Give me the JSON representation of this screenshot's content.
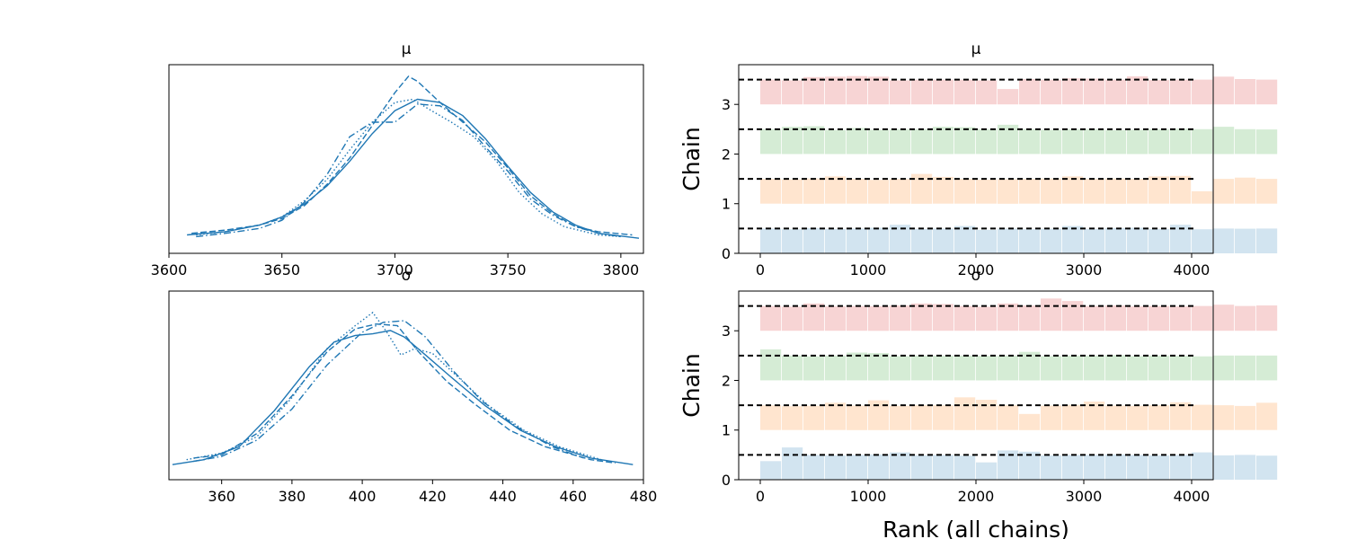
{
  "chart_data": [
    {
      "type": "line",
      "title": "μ",
      "xlim": [
        3600,
        3810
      ],
      "xticks": [
        3600,
        3650,
        3700,
        3750,
        3800
      ],
      "color": "#1f77b4",
      "series": [
        {
          "linestyle": "solid",
          "x": [
            3608,
            3625,
            3640,
            3650,
            3660,
            3670,
            3680,
            3690,
            3700,
            3710,
            3720,
            3730,
            3740,
            3750,
            3760,
            3770,
            3780,
            3790,
            3808
          ],
          "y": [
            0.03,
            0.05,
            0.09,
            0.14,
            0.22,
            0.33,
            0.48,
            0.65,
            0.79,
            0.86,
            0.84,
            0.76,
            0.62,
            0.45,
            0.29,
            0.17,
            0.09,
            0.04,
            0.01
          ]
        },
        {
          "linestyle": "dashed",
          "x": [
            3610,
            3625,
            3640,
            3650,
            3660,
            3670,
            3680,
            3690,
            3700,
            3706,
            3710,
            3720,
            3730,
            3740,
            3750,
            3760,
            3770,
            3780,
            3790,
            3805
          ],
          "y": [
            0.04,
            0.06,
            0.09,
            0.13,
            0.21,
            0.34,
            0.5,
            0.7,
            0.9,
            1.0,
            0.97,
            0.84,
            0.72,
            0.6,
            0.44,
            0.27,
            0.16,
            0.08,
            0.05,
            0.03
          ]
        },
        {
          "linestyle": "dotted",
          "x": [
            3612,
            3625,
            3640,
            3650,
            3660,
            3670,
            3680,
            3690,
            3700,
            3708,
            3715,
            3725,
            3735,
            3745,
            3755,
            3765,
            3775,
            3790,
            3800
          ],
          "y": [
            0.03,
            0.05,
            0.09,
            0.14,
            0.24,
            0.37,
            0.55,
            0.72,
            0.84,
            0.86,
            0.8,
            0.72,
            0.63,
            0.48,
            0.29,
            0.16,
            0.08,
            0.03,
            0.02
          ]
        },
        {
          "linestyle": "dashdot",
          "x": [
            3612,
            3625,
            3640,
            3650,
            3660,
            3670,
            3680,
            3690,
            3700,
            3710,
            3720,
            3730,
            3740,
            3750,
            3760,
            3770,
            3780,
            3790,
            3800
          ],
          "y": [
            0.02,
            0.04,
            0.07,
            0.12,
            0.23,
            0.4,
            0.63,
            0.72,
            0.72,
            0.83,
            0.82,
            0.73,
            0.57,
            0.42,
            0.25,
            0.15,
            0.08,
            0.04,
            0.02
          ]
        }
      ]
    },
    {
      "type": "bar",
      "title": "μ",
      "ylabel": "Chain",
      "xlim": [
        -200,
        4200
      ],
      "ylim": [
        0,
        3.8
      ],
      "xticks": [
        0,
        1000,
        2000,
        3000,
        4000
      ],
      "yticks": [
        0,
        1,
        2,
        3
      ],
      "bin_width": 200,
      "bar_scale": 0.5,
      "chains": [
        {
          "name": "0",
          "color": "#1f77b4",
          "heights": [
            1.0,
            0.97,
            1.02,
            0.98,
            1.0,
            1.03,
            1.15,
            0.98,
            1.0,
            1.1,
            0.95,
            1.0,
            0.97,
            0.99,
            1.1,
            0.98,
            1.02,
            1.03,
            0.98,
            1.15,
            0.97,
            1.0,
            0.99,
            1.0
          ]
        },
        {
          "name": "1",
          "color": "#ff7f0e",
          "heights": [
            1.0,
            0.98,
            1.02,
            1.1,
            1.0,
            0.96,
            1.0,
            1.2,
            1.08,
            1.0,
            0.97,
            0.99,
            1.0,
            1.02,
            1.1,
            1.0,
            1.02,
            1.0,
            1.1,
            1.12,
            0.5,
            1.0,
            1.05,
            1.0
          ]
        },
        {
          "name": "2",
          "color": "#2ca02c",
          "heights": [
            1.0,
            1.1,
            1.12,
            0.97,
            1.05,
            0.98,
            1.0,
            1.0,
            1.1,
            1.08,
            1.0,
            1.18,
            1.0,
            0.98,
            1.0,
            1.0,
            0.96,
            0.98,
            1.0,
            1.02,
            1.0,
            1.1,
            1.0,
            0.99
          ]
        },
        {
          "name": "3",
          "color": "#d62728",
          "heights": [
            1.0,
            0.97,
            1.1,
            1.12,
            1.14,
            1.12,
            0.97,
            1.0,
            1.0,
            1.0,
            0.97,
            0.62,
            1.02,
            1.0,
            1.05,
            1.04,
            1.0,
            1.13,
            0.98,
            1.0,
            1.0,
            1.12,
            1.02,
            1.0
          ]
        }
      ]
    },
    {
      "type": "line",
      "title": "σ",
      "xlim": [
        345,
        480
      ],
      "xticks": [
        360,
        380,
        400,
        420,
        440,
        460,
        480
      ],
      "color": "#1f77b4",
      "series": [
        {
          "linestyle": "solid",
          "x": [
            346,
            355,
            365,
            375,
            385,
            392,
            398,
            403,
            408,
            412,
            418,
            425,
            435,
            445,
            455,
            465,
            477
          ],
          "y": [
            0.01,
            0.04,
            0.12,
            0.34,
            0.61,
            0.76,
            0.8,
            0.81,
            0.83,
            0.79,
            0.68,
            0.55,
            0.37,
            0.22,
            0.12,
            0.05,
            0.01
          ]
        },
        {
          "linestyle": "dashed",
          "x": [
            352,
            360,
            370,
            380,
            390,
            398,
            404,
            410,
            416,
            424,
            432,
            442,
            452,
            465,
            472
          ],
          "y": [
            0.05,
            0.07,
            0.2,
            0.43,
            0.7,
            0.84,
            0.87,
            0.86,
            0.7,
            0.52,
            0.38,
            0.22,
            0.12,
            0.04,
            0.02
          ]
        },
        {
          "linestyle": "dotted",
          "x": [
            350,
            360,
            370,
            380,
            390,
            398,
            403,
            407,
            411,
            415,
            420,
            428,
            436,
            446,
            456,
            468
          ],
          "y": [
            0.04,
            0.08,
            0.18,
            0.42,
            0.72,
            0.86,
            0.94,
            0.82,
            0.68,
            0.72,
            0.69,
            0.53,
            0.37,
            0.22,
            0.12,
            0.04
          ]
        },
        {
          "linestyle": "dashdot",
          "x": [
            352,
            360,
            370,
            380,
            390,
            400,
            406,
            412,
            418,
            426,
            434,
            444,
            454,
            463
          ],
          "y": [
            0.03,
            0.06,
            0.16,
            0.35,
            0.62,
            0.82,
            0.88,
            0.89,
            0.79,
            0.58,
            0.4,
            0.24,
            0.12,
            0.05
          ]
        }
      ]
    },
    {
      "type": "bar",
      "title": "σ",
      "ylabel": "Chain",
      "xlabel": "Rank (all chains)",
      "xlim": [
        -200,
        4200
      ],
      "ylim": [
        0,
        3.8
      ],
      "xticks": [
        0,
        1000,
        2000,
        3000,
        4000
      ],
      "yticks": [
        0,
        1,
        2,
        3
      ],
      "bin_width": 200,
      "bar_scale": 0.5,
      "chains": [
        {
          "name": "0",
          "color": "#1f77b4",
          "heights": [
            0.75,
            1.3,
            1.0,
            0.98,
            1.0,
            1.02,
            1.1,
            0.98,
            1.0,
            0.97,
            0.7,
            1.18,
            1.13,
            0.98,
            1.0,
            1.0,
            1.02,
            1.0,
            0.98,
            1.0,
            1.1,
            0.98,
            1.0,
            0.97
          ]
        },
        {
          "name": "1",
          "color": "#ff7f0e",
          "heights": [
            1.0,
            0.96,
            0.98,
            1.1,
            0.99,
            1.2,
            0.98,
            1.0,
            1.0,
            1.32,
            1.22,
            1.0,
            0.65,
            0.99,
            1.02,
            1.15,
            0.99,
            0.98,
            1.0,
            1.12,
            1.02,
            1.0,
            0.97,
            1.1
          ]
        },
        {
          "name": "2",
          "color": "#2ca02c",
          "heights": [
            1.25,
            1.0,
            0.97,
            1.0,
            1.12,
            1.1,
            0.98,
            1.0,
            1.0,
            1.0,
            0.99,
            1.0,
            1.15,
            0.98,
            1.0,
            1.0,
            1.02,
            0.98,
            1.0,
            0.99,
            0.97,
            1.0,
            1.0,
            1.0
          ]
        },
        {
          "name": "3",
          "color": "#d62728",
          "heights": [
            1.0,
            0.97,
            1.1,
            0.98,
            1.0,
            0.99,
            1.02,
            1.1,
            1.08,
            1.0,
            0.97,
            1.1,
            1.02,
            1.3,
            1.2,
            1.0,
            1.02,
            0.98,
            1.0,
            0.98,
            1.0,
            1.05,
            1.0,
            1.02
          ]
        }
      ]
    }
  ]
}
